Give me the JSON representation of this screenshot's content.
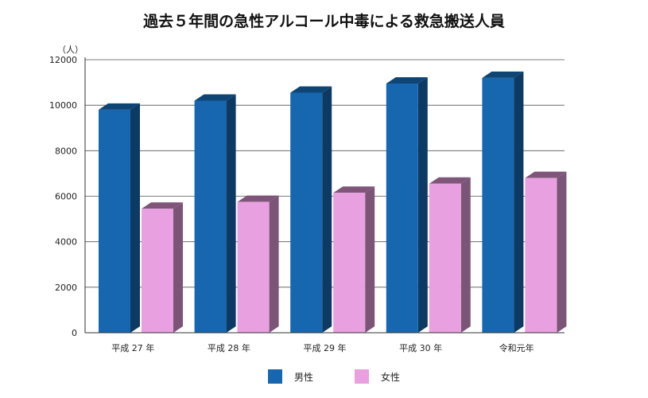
{
  "chart_data": {
    "type": "bar",
    "title": "過去５年間の急性アルコール中毒による救急搬送人員",
    "ylabel": "（人）",
    "xlabel": "",
    "ylim": [
      0,
      12000
    ],
    "yticks": [
      0,
      2000,
      4000,
      6000,
      8000,
      10000,
      12000
    ],
    "grid": true,
    "legend_position": "bottom",
    "categories": [
      "平成 27 年",
      "平成 28 年",
      "平成 29 年",
      "平成 30 年",
      "令和元年"
    ],
    "series": [
      {
        "name": "男性",
        "values": [
          9800,
          10200,
          10550,
          10950,
          11200
        ],
        "color": "#1767b0",
        "top_color": "#0f4574",
        "side_color": "#0c3a63"
      },
      {
        "name": "女性",
        "values": [
          5450,
          5750,
          6150,
          6550,
          6800
        ],
        "color": "#e8a0e0",
        "top_color": "#7f557a",
        "side_color": "#7a5577"
      }
    ]
  }
}
